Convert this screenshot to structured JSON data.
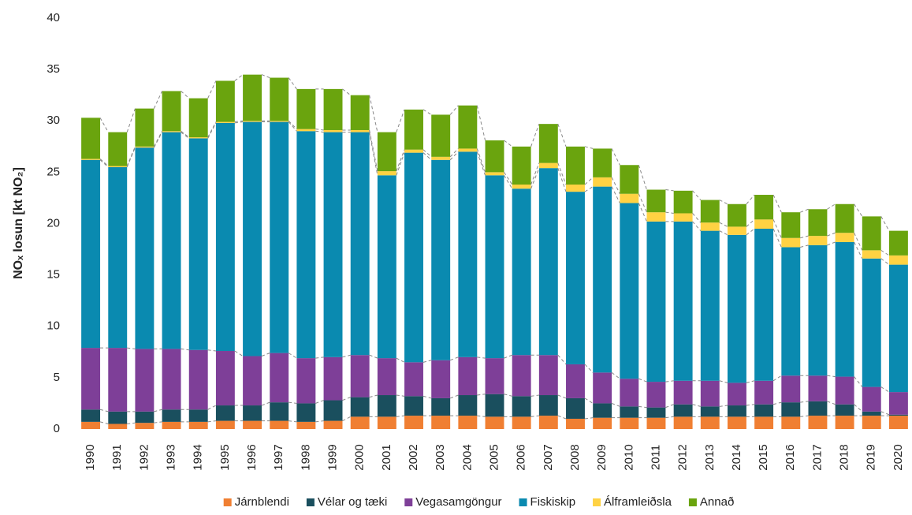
{
  "chart_data": {
    "type": "stacked_bar",
    "ylabel": "NOₓ losun [kt NO₂]",
    "categories": [
      "1990",
      "1991",
      "1992",
      "1993",
      "1994",
      "1995",
      "1996",
      "1997",
      "1998",
      "1999",
      "2000",
      "2001",
      "2002",
      "2003",
      "2004",
      "2005",
      "2006",
      "2007",
      "2008",
      "2009",
      "2010",
      "2011",
      "2012",
      "2013",
      "2014",
      "2015",
      "2016",
      "2017",
      "2018",
      "2019",
      "2020"
    ],
    "series": [
      {
        "name": "Járnblendi",
        "color": "#f07f32",
        "values": [
          0.7,
          0.5,
          0.6,
          0.7,
          0.7,
          0.8,
          0.8,
          0.8,
          0.7,
          0.8,
          1.2,
          1.2,
          1.3,
          1.3,
          1.3,
          1.2,
          1.2,
          1.3,
          1.0,
          1.1,
          1.1,
          1.1,
          1.2,
          1.2,
          1.2,
          1.2,
          1.2,
          1.3,
          1.3,
          1.3,
          1.3
        ]
      },
      {
        "name": "Vélar og tæki",
        "color": "#1a4f5e",
        "values": [
          1.2,
          1.2,
          1.1,
          1.2,
          1.2,
          1.5,
          1.5,
          1.8,
          1.8,
          2.0,
          1.9,
          2.1,
          1.9,
          1.7,
          2.0,
          2.2,
          2.0,
          2.0,
          2.0,
          1.4,
          1.1,
          1.0,
          1.2,
          1.0,
          1.1,
          1.2,
          1.4,
          1.4,
          1.1,
          0.4,
          0.1
        ]
      },
      {
        "name": "Vegasamgöngur",
        "color": "#7e3f98",
        "values": [
          6.0,
          6.2,
          6.1,
          5.9,
          5.8,
          5.3,
          4.8,
          4.8,
          4.4,
          4.2,
          4.1,
          3.6,
          3.3,
          3.7,
          3.7,
          3.5,
          4.0,
          3.9,
          3.3,
          3.0,
          2.7,
          2.5,
          2.3,
          2.5,
          2.2,
          2.3,
          2.6,
          2.5,
          2.7,
          2.4,
          2.2
        ]
      },
      {
        "name": "Fiskiskip",
        "color": "#0a8ab0",
        "values": [
          18.3,
          17.6,
          19.6,
          21.1,
          20.6,
          22.2,
          22.8,
          22.5,
          22.1,
          21.9,
          21.7,
          17.8,
          20.4,
          19.5,
          20.0,
          17.8,
          16.2,
          18.2,
          16.8,
          18.1,
          17.1,
          15.6,
          15.5,
          14.6,
          14.4,
          14.8,
          12.5,
          12.7,
          13.1,
          12.5,
          12.4
        ]
      },
      {
        "name": "Álframleiðsla",
        "color": "#ffd243",
        "values": [
          0.1,
          0.1,
          0.1,
          0.1,
          0.1,
          0.1,
          0.1,
          0.1,
          0.2,
          0.2,
          0.2,
          0.4,
          0.3,
          0.3,
          0.3,
          0.3,
          0.4,
          0.5,
          0.7,
          0.9,
          0.9,
          0.9,
          0.8,
          0.8,
          0.8,
          0.9,
          0.9,
          0.9,
          0.9,
          0.8,
          0.9
        ]
      },
      {
        "name": "Annað",
        "color": "#6aa40e",
        "values": [
          4.0,
          3.3,
          3.7,
          3.9,
          3.8,
          4.0,
          4.5,
          4.2,
          3.9,
          4.0,
          3.4,
          3.8,
          3.9,
          4.1,
          4.2,
          3.1,
          3.7,
          3.8,
          3.7,
          2.8,
          2.8,
          2.2,
          2.2,
          2.2,
          2.2,
          2.4,
          2.5,
          2.6,
          2.8,
          3.3,
          2.4
        ]
      }
    ],
    "ylim": [
      0,
      40
    ],
    "yticks": [
      0,
      5,
      10,
      15,
      20,
      25,
      30,
      35,
      40
    ],
    "grid": false,
    "legend": "bottom"
  }
}
